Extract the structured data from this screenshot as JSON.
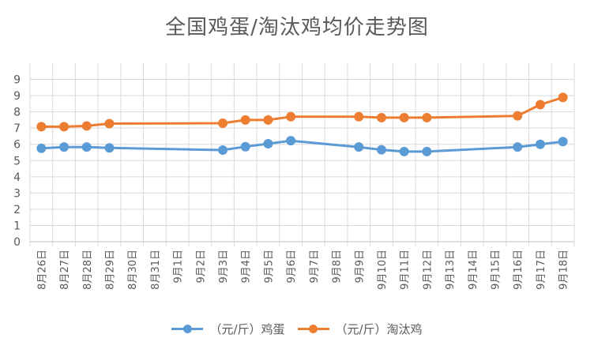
{
  "chart_data": {
    "type": "line",
    "title": "全国鸡蛋/淘汰鸡均价走势图",
    "categories": [
      "8月26日",
      "8月27日",
      "8月28日",
      "8月29日",
      "8月30日",
      "8月31日",
      "9月1日",
      "9月2日",
      "9月3日",
      "9月4日",
      "9月5日",
      "9月6日",
      "9月7日",
      "9月8日",
      "9月9日",
      "9月10日",
      "9月11日",
      "9月12日",
      "9月13日",
      "9月14日",
      "9月15日",
      "9月16日",
      "9月17日",
      "9月18日"
    ],
    "y_tick_labels": [
      "0",
      "1",
      "2",
      "3",
      "4",
      "5",
      "6",
      "7",
      "8",
      "9",
      "9"
    ],
    "ylim": [
      0,
      9
    ],
    "grid": true,
    "legend_position": "bottom",
    "series": [
      {
        "name": "（元/斤）鸡蛋",
        "color": "#5B9BD5",
        "values": [
          5.18,
          5.25,
          5.25,
          5.2,
          null,
          null,
          null,
          null,
          5.08,
          5.27,
          5.43,
          5.6,
          null,
          null,
          5.25,
          5.1,
          5.0,
          5.0,
          null,
          null,
          null,
          5.25,
          5.4,
          5.55
        ]
      },
      {
        "name": "（元/斤）淘汰鸡",
        "color": "#ED7D31",
        "values": [
          6.38,
          6.38,
          6.42,
          6.55,
          null,
          null,
          null,
          null,
          6.57,
          6.75,
          6.75,
          6.93,
          null,
          null,
          6.93,
          6.88,
          6.88,
          6.88,
          null,
          null,
          null,
          6.98,
          7.6,
          8.0
        ]
      }
    ]
  }
}
